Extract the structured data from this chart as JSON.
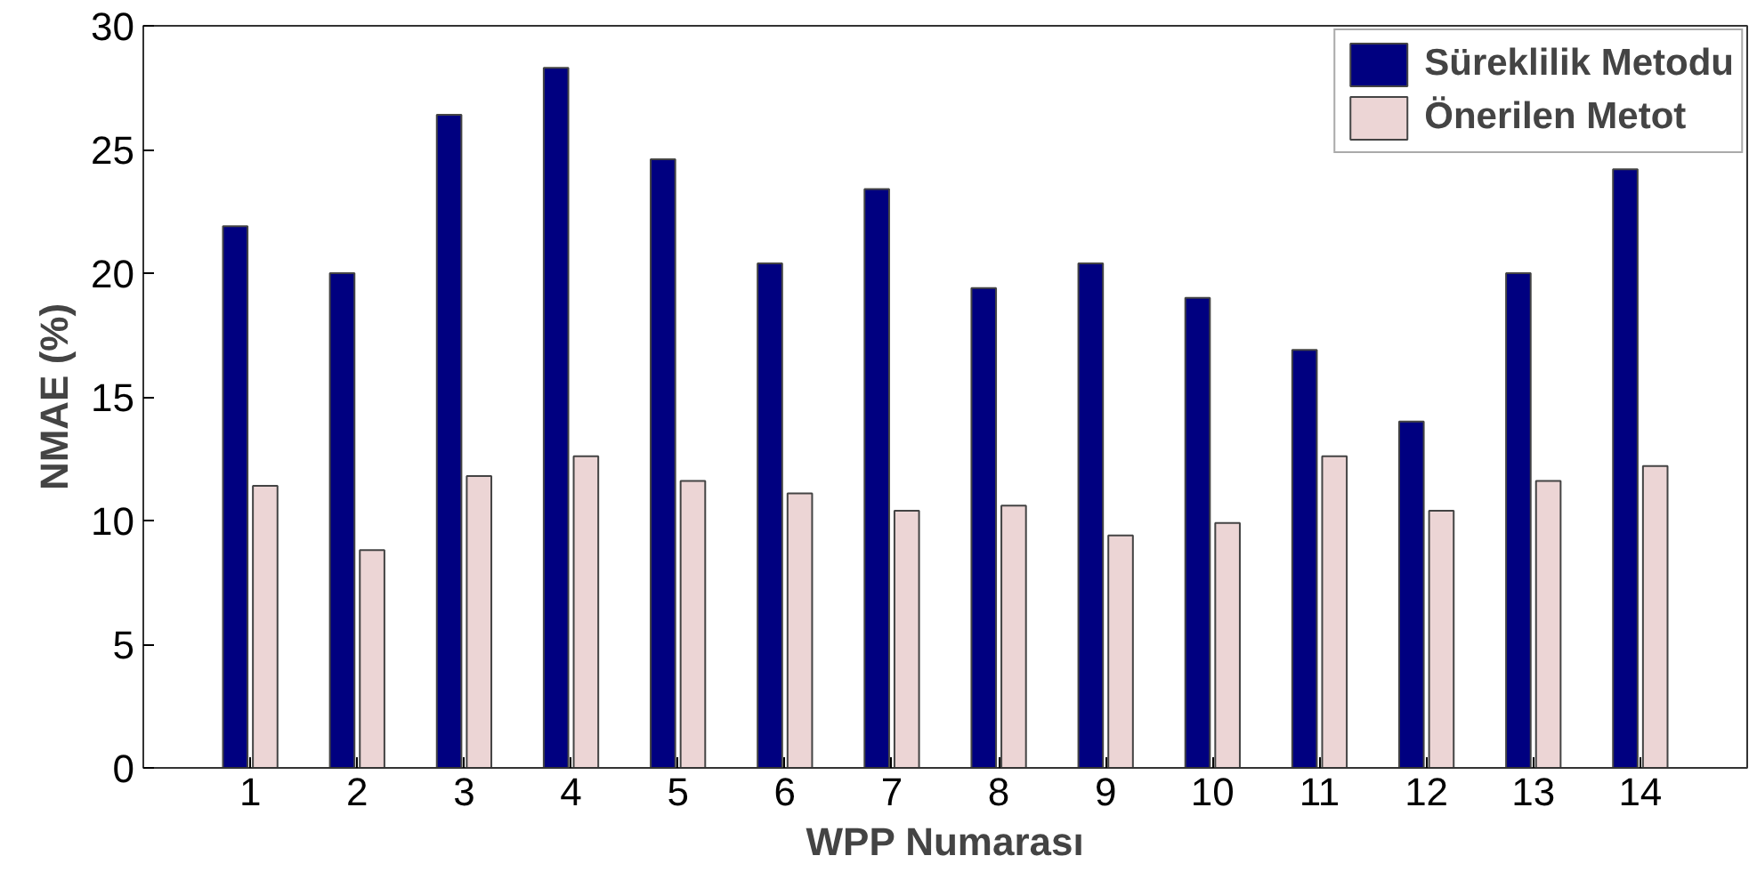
{
  "chart_data": {
    "type": "bar",
    "xlabel": "WPP Numarası",
    "ylabel": "NMAE (%)",
    "x": [
      1,
      2,
      3,
      4,
      5,
      6,
      7,
      8,
      9,
      10,
      11,
      12,
      13,
      14
    ],
    "xlim": [
      0,
      15
    ],
    "xticks": [
      1,
      2,
      3,
      4,
      5,
      6,
      7,
      8,
      9,
      10,
      11,
      12,
      13,
      14
    ],
    "ylim": [
      0,
      30
    ],
    "yticks": [
      0,
      5,
      10,
      15,
      20,
      25,
      30
    ],
    "grid": false,
    "legend": "top right",
    "series": [
      {
        "name": "Süreklilik Metodu",
        "color": "#000080",
        "values": [
          21.9,
          20.0,
          26.4,
          28.3,
          24.6,
          20.4,
          23.4,
          19.4,
          20.4,
          19.0,
          16.9,
          14.0,
          20.0,
          24.2
        ]
      },
      {
        "name": "Önerilen Metot",
        "color": "#ecd5d5",
        "values": [
          11.4,
          8.8,
          11.8,
          12.6,
          11.6,
          11.1,
          10.4,
          10.6,
          9.4,
          9.9,
          12.6,
          10.4,
          11.6,
          12.2
        ]
      }
    ]
  }
}
